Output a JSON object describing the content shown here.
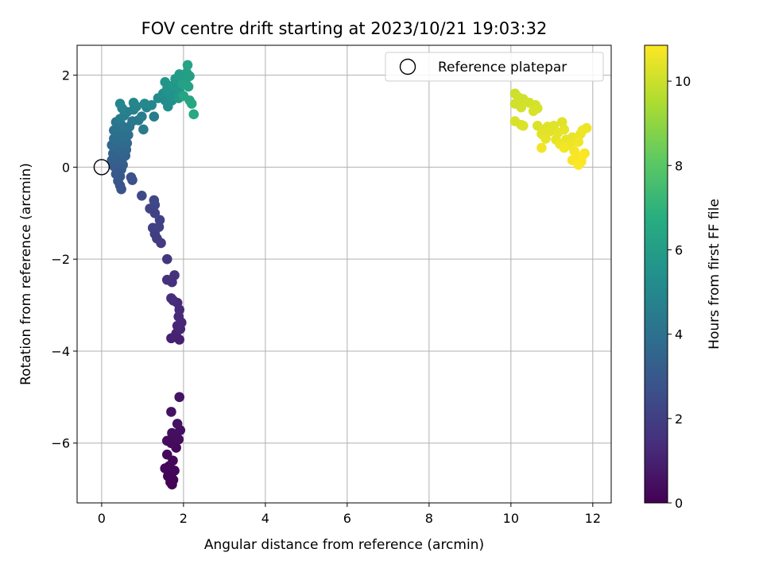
{
  "chart_data": {
    "type": "scatter",
    "title": "FOV centre drift starting at 2023/10/21 19:03:32",
    "xlabel": "Angular distance from reference (arcmin)",
    "ylabel": "Rotation from reference (arcmin)",
    "xlim": [
      -0.6,
      12.45
    ],
    "ylim": [
      -7.3,
      2.65
    ],
    "xticks": [
      0,
      2,
      4,
      6,
      8,
      10,
      12
    ],
    "yticks": [
      -6,
      -4,
      -2,
      0,
      2
    ],
    "grid": true,
    "legend": {
      "position": "top-right",
      "entries": [
        "Reference platepar"
      ]
    },
    "reference_point": {
      "x": 0,
      "y": 0,
      "label": "Reference platepar"
    },
    "colorbar": {
      "label": "Hours from first FF file",
      "colormap": "viridis",
      "range": [
        0,
        10.85
      ],
      "ticks": [
        0,
        2,
        4,
        6,
        8,
        10
      ]
    },
    "series": [
      {
        "color_by": "hours",
        "points": [
          [
            1.72,
            -6.9,
            0.02
          ],
          [
            1.68,
            -6.85,
            0.05
          ],
          [
            1.75,
            -6.8,
            0.08
          ],
          [
            1.62,
            -6.72,
            0.1
          ],
          [
            1.7,
            -6.62,
            0.12
          ],
          [
            1.78,
            -6.6,
            0.15
          ],
          [
            1.55,
            -6.55,
            0.17
          ],
          [
            1.65,
            -6.5,
            0.19
          ],
          [
            1.74,
            -6.38,
            0.21
          ],
          [
            1.6,
            -6.25,
            0.24
          ],
          [
            1.82,
            -6.1,
            0.27
          ],
          [
            1.7,
            -6.0,
            0.3
          ],
          [
            1.6,
            -5.95,
            0.33
          ],
          [
            1.88,
            -5.92,
            0.36
          ],
          [
            1.8,
            -5.85,
            0.39
          ],
          [
            1.72,
            -5.78,
            0.42
          ],
          [
            1.92,
            -5.72,
            0.45
          ],
          [
            1.85,
            -5.58,
            0.48
          ],
          [
            1.7,
            -5.32,
            0.52
          ],
          [
            1.9,
            -5.0,
            0.56
          ],
          [
            1.9,
            -3.75,
            0.95
          ],
          [
            1.7,
            -3.72,
            1.0
          ],
          [
            1.82,
            -3.62,
            1.05
          ],
          [
            1.92,
            -3.52,
            1.1
          ],
          [
            1.85,
            -3.45,
            1.14
          ],
          [
            1.95,
            -3.38,
            1.18
          ],
          [
            1.88,
            -3.25,
            1.22
          ],
          [
            1.9,
            -3.1,
            1.26
          ],
          [
            1.85,
            -2.95,
            1.3
          ],
          [
            1.75,
            -2.9,
            1.34
          ],
          [
            1.7,
            -2.85,
            1.38
          ],
          [
            1.72,
            -2.5,
            1.5
          ],
          [
            1.6,
            -2.45,
            1.54
          ],
          [
            1.78,
            -2.35,
            1.58
          ],
          [
            1.6,
            -2.0,
            1.72
          ],
          [
            1.45,
            -1.65,
            1.84
          ],
          [
            1.35,
            -1.55,
            1.9
          ],
          [
            1.3,
            -1.45,
            1.95
          ],
          [
            1.25,
            -1.32,
            2.0
          ],
          [
            1.4,
            -1.3,
            2.05
          ],
          [
            1.42,
            -1.15,
            2.1
          ],
          [
            1.3,
            -1.0,
            2.15
          ],
          [
            1.18,
            -0.9,
            2.2
          ],
          [
            1.3,
            -0.82,
            2.25
          ],
          [
            1.28,
            -0.72,
            2.3
          ],
          [
            0.98,
            -0.62,
            2.42
          ],
          [
            0.75,
            -0.28,
            2.65
          ],
          [
            0.72,
            -0.22,
            2.7
          ],
          [
            0.48,
            -0.48,
            2.8
          ],
          [
            0.45,
            -0.4,
            2.85
          ],
          [
            0.4,
            -0.3,
            2.9
          ],
          [
            0.45,
            -0.2,
            2.95
          ],
          [
            0.35,
            -0.15,
            3.0
          ],
          [
            0.48,
            -0.05,
            3.05
          ],
          [
            0.3,
            0.02,
            3.1
          ],
          [
            0.52,
            0.05,
            3.15
          ],
          [
            0.42,
            0.12,
            3.2
          ],
          [
            0.25,
            0.15,
            3.25
          ],
          [
            0.5,
            0.18,
            3.3
          ],
          [
            0.35,
            0.22,
            3.35
          ],
          [
            0.58,
            0.25,
            3.4
          ],
          [
            0.28,
            0.3,
            3.45
          ],
          [
            0.45,
            0.32,
            3.5
          ],
          [
            0.6,
            0.38,
            3.55
          ],
          [
            0.38,
            0.42,
            3.6
          ],
          [
            0.25,
            0.48,
            3.65
          ],
          [
            0.52,
            0.5,
            3.7
          ],
          [
            0.62,
            0.52,
            3.75
          ],
          [
            0.4,
            0.58,
            3.8
          ],
          [
            0.3,
            0.62,
            3.85
          ],
          [
            0.55,
            0.65,
            3.9
          ],
          [
            0.65,
            0.7,
            3.95
          ],
          [
            0.45,
            0.75,
            4.0
          ],
          [
            0.3,
            0.8,
            4.05
          ],
          [
            0.58,
            0.82,
            4.1
          ],
          [
            0.68,
            0.88,
            4.15
          ],
          [
            0.48,
            0.92,
            4.2
          ],
          [
            0.35,
            0.98,
            4.25
          ],
          [
            0.75,
            1.0,
            4.3
          ],
          [
            0.9,
            1.02,
            4.35
          ],
          [
            0.45,
            1.05,
            4.4
          ],
          [
            1.02,
            0.82,
            4.45
          ],
          [
            0.98,
            1.1,
            4.5
          ],
          [
            1.28,
            1.1,
            4.55
          ],
          [
            0.55,
            1.12,
            4.6
          ],
          [
            0.62,
            1.2,
            4.65
          ],
          [
            0.78,
            1.25,
            4.7
          ],
          [
            0.5,
            1.28,
            4.75
          ],
          [
            1.1,
            1.3,
            4.8
          ],
          [
            0.85,
            1.32,
            4.85
          ],
          [
            0.45,
            1.38,
            4.9
          ],
          [
            1.22,
            1.35,
            4.95
          ],
          [
            0.78,
            1.4,
            4.98
          ],
          [
            1.05,
            1.38,
            5.02
          ],
          [
            1.38,
            1.5,
            5.1
          ],
          [
            1.55,
            1.45,
            5.2
          ],
          [
            1.62,
            1.32,
            5.3
          ],
          [
            1.72,
            1.45,
            5.35
          ],
          [
            1.5,
            1.6,
            5.4
          ],
          [
            1.68,
            1.55,
            5.45
          ],
          [
            1.8,
            1.6,
            5.5
          ],
          [
            1.6,
            1.7,
            5.55
          ],
          [
            1.55,
            1.85,
            5.6
          ],
          [
            1.9,
            1.65,
            5.65
          ],
          [
            1.75,
            1.78,
            5.7
          ],
          [
            1.88,
            1.5,
            5.75
          ],
          [
            1.95,
            1.85,
            5.8
          ],
          [
            1.8,
            1.92,
            5.85
          ],
          [
            1.9,
            2.02,
            5.9
          ],
          [
            2.0,
            1.95,
            5.95
          ],
          [
            2.05,
            1.88,
            6.0
          ],
          [
            2.08,
            2.05,
            6.05
          ],
          [
            2.15,
            1.98,
            6.1
          ],
          [
            1.98,
            1.8,
            6.15
          ],
          [
            2.12,
            1.75,
            6.2
          ],
          [
            2.1,
            2.22,
            6.25
          ],
          [
            2.0,
            1.55,
            6.3
          ],
          [
            2.15,
            1.45,
            6.35
          ],
          [
            2.2,
            1.38,
            6.4
          ],
          [
            2.25,
            1.15,
            6.5
          ],
          [
            10.1,
            1.6,
            10.0
          ],
          [
            10.18,
            1.52,
            10.05
          ],
          [
            10.3,
            1.48,
            10.08
          ],
          [
            10.1,
            1.38,
            10.1
          ],
          [
            10.25,
            1.3,
            10.12
          ],
          [
            10.45,
            1.4,
            10.14
          ],
          [
            10.6,
            1.35,
            10.16
          ],
          [
            10.65,
            1.28,
            10.18
          ],
          [
            10.55,
            1.22,
            10.2
          ],
          [
            10.1,
            1.0,
            10.22
          ],
          [
            10.25,
            0.92,
            10.24
          ],
          [
            10.3,
            0.9,
            10.26
          ],
          [
            10.65,
            0.9,
            10.28
          ],
          [
            10.8,
            0.82,
            10.3
          ],
          [
            10.9,
            0.88,
            10.32
          ],
          [
            11.05,
            0.9,
            10.34
          ],
          [
            11.25,
            0.98,
            10.36
          ],
          [
            10.95,
            0.78,
            10.38
          ],
          [
            10.75,
            0.72,
            10.4
          ],
          [
            11.15,
            0.75,
            10.42
          ],
          [
            11.3,
            0.82,
            10.44
          ],
          [
            10.85,
            0.62,
            10.46
          ],
          [
            11.1,
            0.6,
            10.48
          ],
          [
            11.35,
            0.6,
            10.5
          ],
          [
            11.5,
            0.65,
            10.52
          ],
          [
            11.7,
            0.72,
            10.54
          ],
          [
            11.85,
            0.85,
            10.56
          ],
          [
            11.75,
            0.8,
            10.58
          ],
          [
            11.2,
            0.5,
            10.6
          ],
          [
            11.45,
            0.48,
            10.62
          ],
          [
            11.65,
            0.55,
            10.64
          ],
          [
            10.75,
            0.42,
            10.66
          ],
          [
            11.3,
            0.42,
            10.68
          ],
          [
            11.55,
            0.35,
            10.7
          ],
          [
            11.8,
            0.3,
            10.72
          ],
          [
            11.6,
            0.22,
            10.74
          ],
          [
            11.5,
            0.15,
            10.76
          ],
          [
            11.72,
            0.12,
            10.78
          ],
          [
            11.65,
            0.05,
            10.8
          ],
          [
            11.75,
            0.25,
            10.82
          ]
        ]
      }
    ]
  }
}
